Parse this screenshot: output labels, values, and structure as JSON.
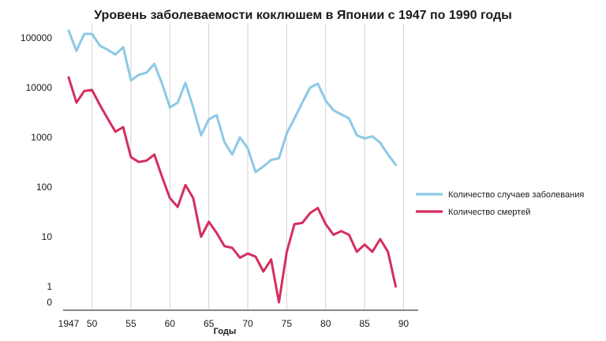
{
  "chart_data": {
    "type": "line",
    "title": "Уровень заболеваемости коклюшем в Японии с 1947 по 1990 годы",
    "xlabel": "Годы",
    "ylabel": "",
    "xlim": [
      1946.5,
      1992.5
    ],
    "x_ticks": [
      1947,
      1950,
      1955,
      1960,
      1965,
      1970,
      1975,
      1980,
      1985,
      1990
    ],
    "x_tick_labels": [
      "1947",
      "50",
      "55",
      "60",
      "65",
      "70",
      "75",
      "80",
      "85",
      "90"
    ],
    "y_scale": "log",
    "y_ticks": [
      0,
      1,
      10,
      100,
      1000,
      10000,
      100000
    ],
    "y_tick_labels": [
      "0",
      "1",
      "10",
      "100",
      "1000",
      "10000",
      "100000"
    ],
    "grid": "vertical",
    "legend_position": "right",
    "series": [
      {
        "name": "Количество случаев заболевания",
        "color": "#8cc9e6",
        "x": [
          1947,
          1948,
          1949,
          1950,
          1951,
          1952,
          1953,
          1954,
          1955,
          1956,
          1957,
          1958,
          1959,
          1960,
          1961,
          1962,
          1963,
          1964,
          1965,
          1966,
          1967,
          1968,
          1969,
          1970,
          1971,
          1972,
          1973,
          1974,
          1975,
          1976,
          1977,
          1978,
          1979,
          1980,
          1981,
          1982,
          1983,
          1984,
          1985,
          1986,
          1987,
          1988,
          1989,
          1990
        ],
        "values": [
          140000,
          55000,
          120000,
          120000,
          70000,
          58000,
          46000,
          65000,
          14000,
          18000,
          20000,
          30000,
          12000,
          4000,
          5000,
          12500,
          4000,
          1100,
          2300,
          2800,
          800,
          450,
          1000,
          600,
          200,
          260,
          350,
          380,
          1200,
          2400,
          5000,
          10000,
          12000,
          5500,
          3500,
          2900,
          2400,
          1100,
          950,
          1050,
          780,
          450,
          280,
          null
        ]
      },
      {
        "name": "Количество смертей",
        "color": "#d42e5e",
        "x": [
          1947,
          1948,
          1949,
          1950,
          1951,
          1952,
          1953,
          1954,
          1955,
          1956,
          1957,
          1958,
          1959,
          1960,
          1961,
          1962,
          1963,
          1964,
          1965,
          1966,
          1967,
          1968,
          1969,
          1970,
          1971,
          1972,
          1973,
          1974,
          1975,
          1976,
          1977,
          1978,
          1979,
          1980,
          1981,
          1982,
          1983,
          1984,
          1985,
          1986,
          1987,
          1988,
          1989,
          1990
        ],
        "values": [
          16000,
          5000,
          8500,
          9000,
          4500,
          2400,
          1300,
          1600,
          400,
          320,
          340,
          450,
          160,
          60,
          40,
          110,
          60,
          10,
          20,
          12,
          6.5,
          6,
          3.8,
          4.6,
          4,
          2,
          3.5,
          0,
          5,
          18,
          19,
          30,
          38,
          18,
          11,
          13,
          11,
          5,
          7,
          5,
          9,
          5,
          1,
          null
        ]
      }
    ]
  }
}
